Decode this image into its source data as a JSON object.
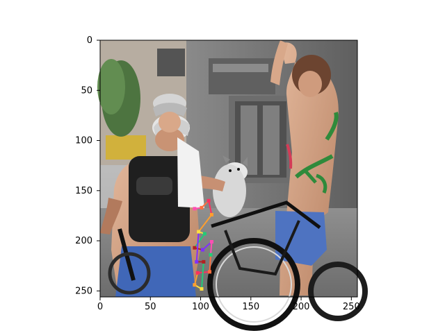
{
  "figure": {
    "image_description_icon": "photo-placeholder-icon",
    "x_ticks": [
      "0",
      "50",
      "100",
      "150",
      "200",
      "250"
    ],
    "y_ticks": [
      "0",
      "50",
      "100",
      "150",
      "200",
      "250"
    ],
    "x_domain": [
      0,
      256
    ],
    "y_domain": [
      0,
      256
    ],
    "keypoint_colors": [
      "#ff4fb2",
      "#ff6f3f",
      "#ff2f5f",
      "#ff9f2f",
      "#ffdf3f",
      "#22cc77",
      "#b22222",
      "#7f2fff"
    ],
    "keypoints": [
      {
        "x": 94,
        "y": 168
      },
      {
        "x": 101,
        "y": 167
      },
      {
        "x": 108,
        "y": 160
      },
      {
        "x": 111,
        "y": 174
      },
      {
        "x": 98,
        "y": 191
      },
      {
        "x": 104,
        "y": 193
      },
      {
        "x": 94,
        "y": 207
      },
      {
        "x": 102,
        "y": 209
      },
      {
        "x": 111,
        "y": 201
      },
      {
        "x": 109,
        "y": 231
      },
      {
        "x": 97,
        "y": 232
      },
      {
        "x": 94,
        "y": 244
      },
      {
        "x": 101,
        "y": 248
      },
      {
        "x": 110,
        "y": 214
      },
      {
        "x": 103,
        "y": 221
      },
      {
        "x": 96,
        "y": 221
      }
    ],
    "skeleton": [
      [
        0,
        1
      ],
      [
        1,
        2
      ],
      [
        2,
        3
      ],
      [
        3,
        4
      ],
      [
        4,
        5
      ],
      [
        5,
        6
      ],
      [
        6,
        7
      ],
      [
        7,
        8
      ],
      [
        8,
        13
      ],
      [
        13,
        9
      ],
      [
        9,
        10
      ],
      [
        10,
        11
      ],
      [
        11,
        12
      ],
      [
        12,
        14
      ],
      [
        14,
        15
      ],
      [
        15,
        4
      ]
    ]
  }
}
